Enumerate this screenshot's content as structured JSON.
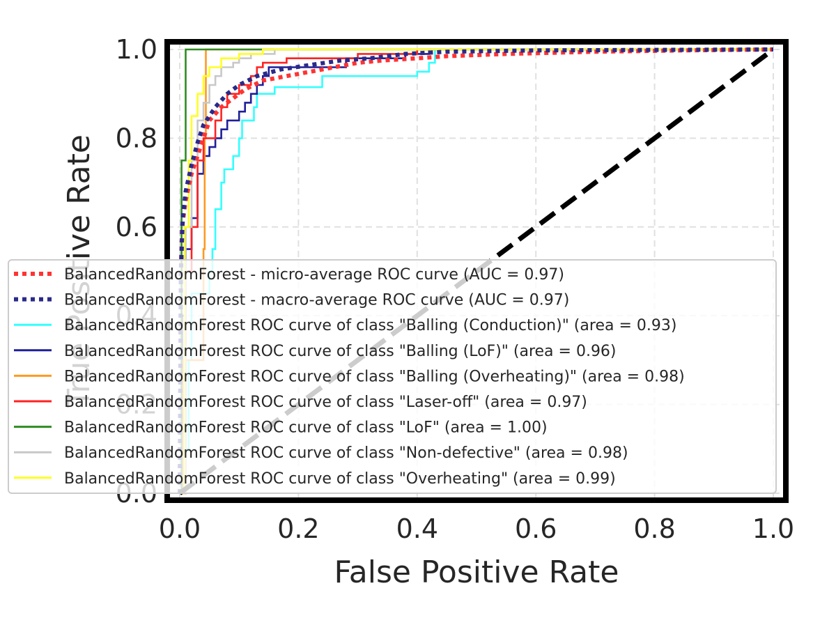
{
  "chart_data": {
    "type": "line",
    "title": "",
    "xlabel": "False Positive Rate",
    "ylabel": "True Positive Rate",
    "xlim": [
      0.0,
      1.0
    ],
    "ylim": [
      0.0,
      1.0
    ],
    "x_ticks": [
      "0.0",
      "0.2",
      "0.4",
      "0.6",
      "0.8",
      "1.0"
    ],
    "y_ticks": [
      "0.0",
      "0.2",
      "0.4",
      "0.6",
      "0.8",
      "1.0"
    ],
    "grid": true,
    "legend_position": "lower-right",
    "series": [
      {
        "name": "BalancedRandomForest - micro-average ROC curve (AUC = 0.97)",
        "color": "#ff3333",
        "style": "dotted",
        "points": [
          [
            0,
            0
          ],
          [
            0.002,
            0.5
          ],
          [
            0.004,
            0.6
          ],
          [
            0.01,
            0.66
          ],
          [
            0.02,
            0.72
          ],
          [
            0.03,
            0.76
          ],
          [
            0.04,
            0.8
          ],
          [
            0.05,
            0.84
          ],
          [
            0.07,
            0.87
          ],
          [
            0.09,
            0.89
          ],
          [
            0.11,
            0.91
          ],
          [
            0.14,
            0.93
          ],
          [
            0.18,
            0.94
          ],
          [
            0.22,
            0.95
          ],
          [
            0.26,
            0.96
          ],
          [
            0.3,
            0.97
          ],
          [
            0.34,
            0.975
          ],
          [
            0.4,
            0.98
          ],
          [
            0.45,
            0.985
          ],
          [
            0.55,
            0.99
          ],
          [
            0.7,
            0.995
          ],
          [
            0.85,
            0.998
          ],
          [
            1,
            1
          ]
        ]
      },
      {
        "name": "BalancedRandomForest - macro-average ROC curve (AUC = 0.97)",
        "color": "#2a2a8a",
        "style": "dotted",
        "points": [
          [
            0,
            0
          ],
          [
            0.002,
            0.5
          ],
          [
            0.005,
            0.62
          ],
          [
            0.01,
            0.68
          ],
          [
            0.02,
            0.74
          ],
          [
            0.03,
            0.79
          ],
          [
            0.04,
            0.83
          ],
          [
            0.06,
            0.87
          ],
          [
            0.08,
            0.9
          ],
          [
            0.1,
            0.92
          ],
          [
            0.13,
            0.94
          ],
          [
            0.17,
            0.955
          ],
          [
            0.22,
            0.965
          ],
          [
            0.27,
            0.975
          ],
          [
            0.32,
            0.98
          ],
          [
            0.38,
            0.99
          ],
          [
            0.45,
            0.995
          ],
          [
            0.6,
            0.998
          ],
          [
            1,
            1
          ]
        ]
      },
      {
        "name": "BalancedRandomForest ROC curve of class \"Balling (Conduction)\" (area = 0.93)",
        "color": "#33ffff",
        "style": "solid",
        "points": [
          [
            0,
            0
          ],
          [
            0.008,
            0.0
          ],
          [
            0.008,
            0.1
          ],
          [
            0.015,
            0.1
          ],
          [
            0.015,
            0.3
          ],
          [
            0.02,
            0.3
          ],
          [
            0.02,
            0.45
          ],
          [
            0.05,
            0.45
          ],
          [
            0.05,
            0.5
          ],
          [
            0.055,
            0.5
          ],
          [
            0.055,
            0.55
          ],
          [
            0.06,
            0.55
          ],
          [
            0.06,
            0.64
          ],
          [
            0.07,
            0.64
          ],
          [
            0.07,
            0.7
          ],
          [
            0.075,
            0.7
          ],
          [
            0.075,
            0.73
          ],
          [
            0.09,
            0.73
          ],
          [
            0.09,
            0.76
          ],
          [
            0.1,
            0.76
          ],
          [
            0.1,
            0.8
          ],
          [
            0.105,
            0.8
          ],
          [
            0.105,
            0.84
          ],
          [
            0.125,
            0.84
          ],
          [
            0.125,
            0.87
          ],
          [
            0.13,
            0.87
          ],
          [
            0.13,
            0.9
          ],
          [
            0.16,
            0.9
          ],
          [
            0.16,
            0.915
          ],
          [
            0.24,
            0.915
          ],
          [
            0.24,
            0.93
          ],
          [
            0.24,
            0.94
          ],
          [
            0.4,
            0.94
          ],
          [
            0.4,
            0.95
          ],
          [
            0.42,
            0.95
          ],
          [
            0.42,
            0.97
          ],
          [
            0.43,
            0.97
          ],
          [
            0.43,
            0.99
          ],
          [
            0.43,
            1.0
          ],
          [
            1,
            1
          ]
        ]
      },
      {
        "name": "BalancedRandomForest ROC curve of class \"Balling (LoF)\" (area = 0.96)",
        "color": "#1f1f99",
        "style": "solid",
        "points": [
          [
            0,
            0
          ],
          [
            0.004,
            0.0
          ],
          [
            0.004,
            0.4
          ],
          [
            0.01,
            0.4
          ],
          [
            0.01,
            0.55
          ],
          [
            0.02,
            0.55
          ],
          [
            0.02,
            0.62
          ],
          [
            0.03,
            0.62
          ],
          [
            0.03,
            0.72
          ],
          [
            0.04,
            0.72
          ],
          [
            0.04,
            0.76
          ],
          [
            0.05,
            0.76
          ],
          [
            0.05,
            0.78
          ],
          [
            0.06,
            0.78
          ],
          [
            0.06,
            0.8
          ],
          [
            0.07,
            0.8
          ],
          [
            0.07,
            0.82
          ],
          [
            0.08,
            0.82
          ],
          [
            0.08,
            0.84
          ],
          [
            0.1,
            0.84
          ],
          [
            0.1,
            0.86
          ],
          [
            0.11,
            0.86
          ],
          [
            0.11,
            0.88
          ],
          [
            0.12,
            0.88
          ],
          [
            0.12,
            0.9
          ],
          [
            0.13,
            0.9
          ],
          [
            0.13,
            0.92
          ],
          [
            0.14,
            0.92
          ],
          [
            0.14,
            0.94
          ],
          [
            0.15,
            0.94
          ],
          [
            0.15,
            0.96
          ],
          [
            0.28,
            0.96
          ],
          [
            0.28,
            0.98
          ],
          [
            0.38,
            0.98
          ],
          [
            0.38,
            0.99
          ],
          [
            0.42,
            0.99
          ],
          [
            0.42,
            1.0
          ],
          [
            1,
            1
          ]
        ]
      },
      {
        "name": "BalancedRandomForest ROC curve of class \"Balling (Overheating)\" (area = 0.98)",
        "color": "#ff9922",
        "style": "solid",
        "points": [
          [
            0,
            0
          ],
          [
            0.005,
            0.0
          ],
          [
            0.005,
            0.3
          ],
          [
            0.04,
            0.3
          ],
          [
            0.04,
            0.55
          ],
          [
            0.042,
            0.55
          ],
          [
            0.042,
            0.8
          ],
          [
            0.044,
            0.8
          ],
          [
            0.044,
            1.0
          ],
          [
            1,
            1
          ]
        ]
      },
      {
        "name": "BalancedRandomForest ROC curve of class \"Laser-off\" (area = 0.97)",
        "color": "#ff2222",
        "style": "solid",
        "points": [
          [
            0,
            0
          ],
          [
            0.01,
            0.0
          ],
          [
            0.01,
            0.5
          ],
          [
            0.02,
            0.5
          ],
          [
            0.02,
            0.6
          ],
          [
            0.03,
            0.6
          ],
          [
            0.03,
            0.75
          ],
          [
            0.04,
            0.75
          ],
          [
            0.04,
            0.8
          ],
          [
            0.06,
            0.8
          ],
          [
            0.06,
            0.84
          ],
          [
            0.07,
            0.84
          ],
          [
            0.07,
            0.87
          ],
          [
            0.08,
            0.87
          ],
          [
            0.08,
            0.9
          ],
          [
            0.1,
            0.9
          ],
          [
            0.1,
            0.92
          ],
          [
            0.12,
            0.92
          ],
          [
            0.12,
            0.94
          ],
          [
            0.13,
            0.94
          ],
          [
            0.13,
            0.96
          ],
          [
            0.14,
            0.96
          ],
          [
            0.14,
            0.97
          ],
          [
            0.18,
            0.97
          ],
          [
            0.18,
            0.98
          ],
          [
            0.3,
            0.98
          ],
          [
            0.3,
            0.99
          ],
          [
            0.4,
            0.99
          ],
          [
            0.4,
            1.0
          ],
          [
            1,
            1
          ]
        ]
      },
      {
        "name": "BalancedRandomForest ROC curve of class \"LoF\" (area = 1.00)",
        "color": "#2e8b22",
        "style": "solid",
        "points": [
          [
            0,
            0
          ],
          [
            0.003,
            0.0
          ],
          [
            0.003,
            0.75
          ],
          [
            0.01,
            0.75
          ],
          [
            0.01,
            1.0
          ],
          [
            1,
            1
          ]
        ]
      },
      {
        "name": "BalancedRandomForest ROC curve of class \"Non-defective\" (area = 0.98)",
        "color": "#c8c8c8",
        "style": "solid",
        "points": [
          [
            0,
            0
          ],
          [
            0.01,
            0.0
          ],
          [
            0.01,
            0.6
          ],
          [
            0.02,
            0.6
          ],
          [
            0.02,
            0.75
          ],
          [
            0.03,
            0.75
          ],
          [
            0.03,
            0.84
          ],
          [
            0.04,
            0.84
          ],
          [
            0.04,
            0.88
          ],
          [
            0.05,
            0.88
          ],
          [
            0.05,
            0.92
          ],
          [
            0.06,
            0.92
          ],
          [
            0.06,
            0.94
          ],
          [
            0.07,
            0.94
          ],
          [
            0.07,
            0.96
          ],
          [
            0.09,
            0.96
          ],
          [
            0.09,
            0.97
          ],
          [
            0.1,
            0.97
          ],
          [
            0.1,
            0.98
          ],
          [
            0.12,
            0.98
          ],
          [
            0.12,
            0.99
          ],
          [
            0.16,
            0.99
          ],
          [
            0.16,
            1.0
          ],
          [
            1,
            1
          ]
        ]
      },
      {
        "name": "BalancedRandomForest ROC curve of class \"Overheating\" (area = 0.99)",
        "color": "#ffff22",
        "style": "solid",
        "points": [
          [
            0,
            0
          ],
          [
            0.008,
            0.0
          ],
          [
            0.008,
            0.6
          ],
          [
            0.015,
            0.6
          ],
          [
            0.015,
            0.75
          ],
          [
            0.02,
            0.75
          ],
          [
            0.02,
            0.85
          ],
          [
            0.03,
            0.85
          ],
          [
            0.03,
            0.9
          ],
          [
            0.04,
            0.9
          ],
          [
            0.04,
            0.94
          ],
          [
            0.05,
            0.94
          ],
          [
            0.05,
            0.96
          ],
          [
            0.07,
            0.96
          ],
          [
            0.07,
            0.98
          ],
          [
            0.1,
            0.98
          ],
          [
            0.1,
            0.99
          ],
          [
            0.14,
            0.99
          ],
          [
            0.14,
            1.0
          ],
          [
            1,
            1
          ]
        ]
      },
      {
        "name": "",
        "color": "#000000",
        "style": "dashed",
        "points": [
          [
            0,
            0
          ],
          [
            1,
            1
          ]
        ]
      }
    ]
  }
}
